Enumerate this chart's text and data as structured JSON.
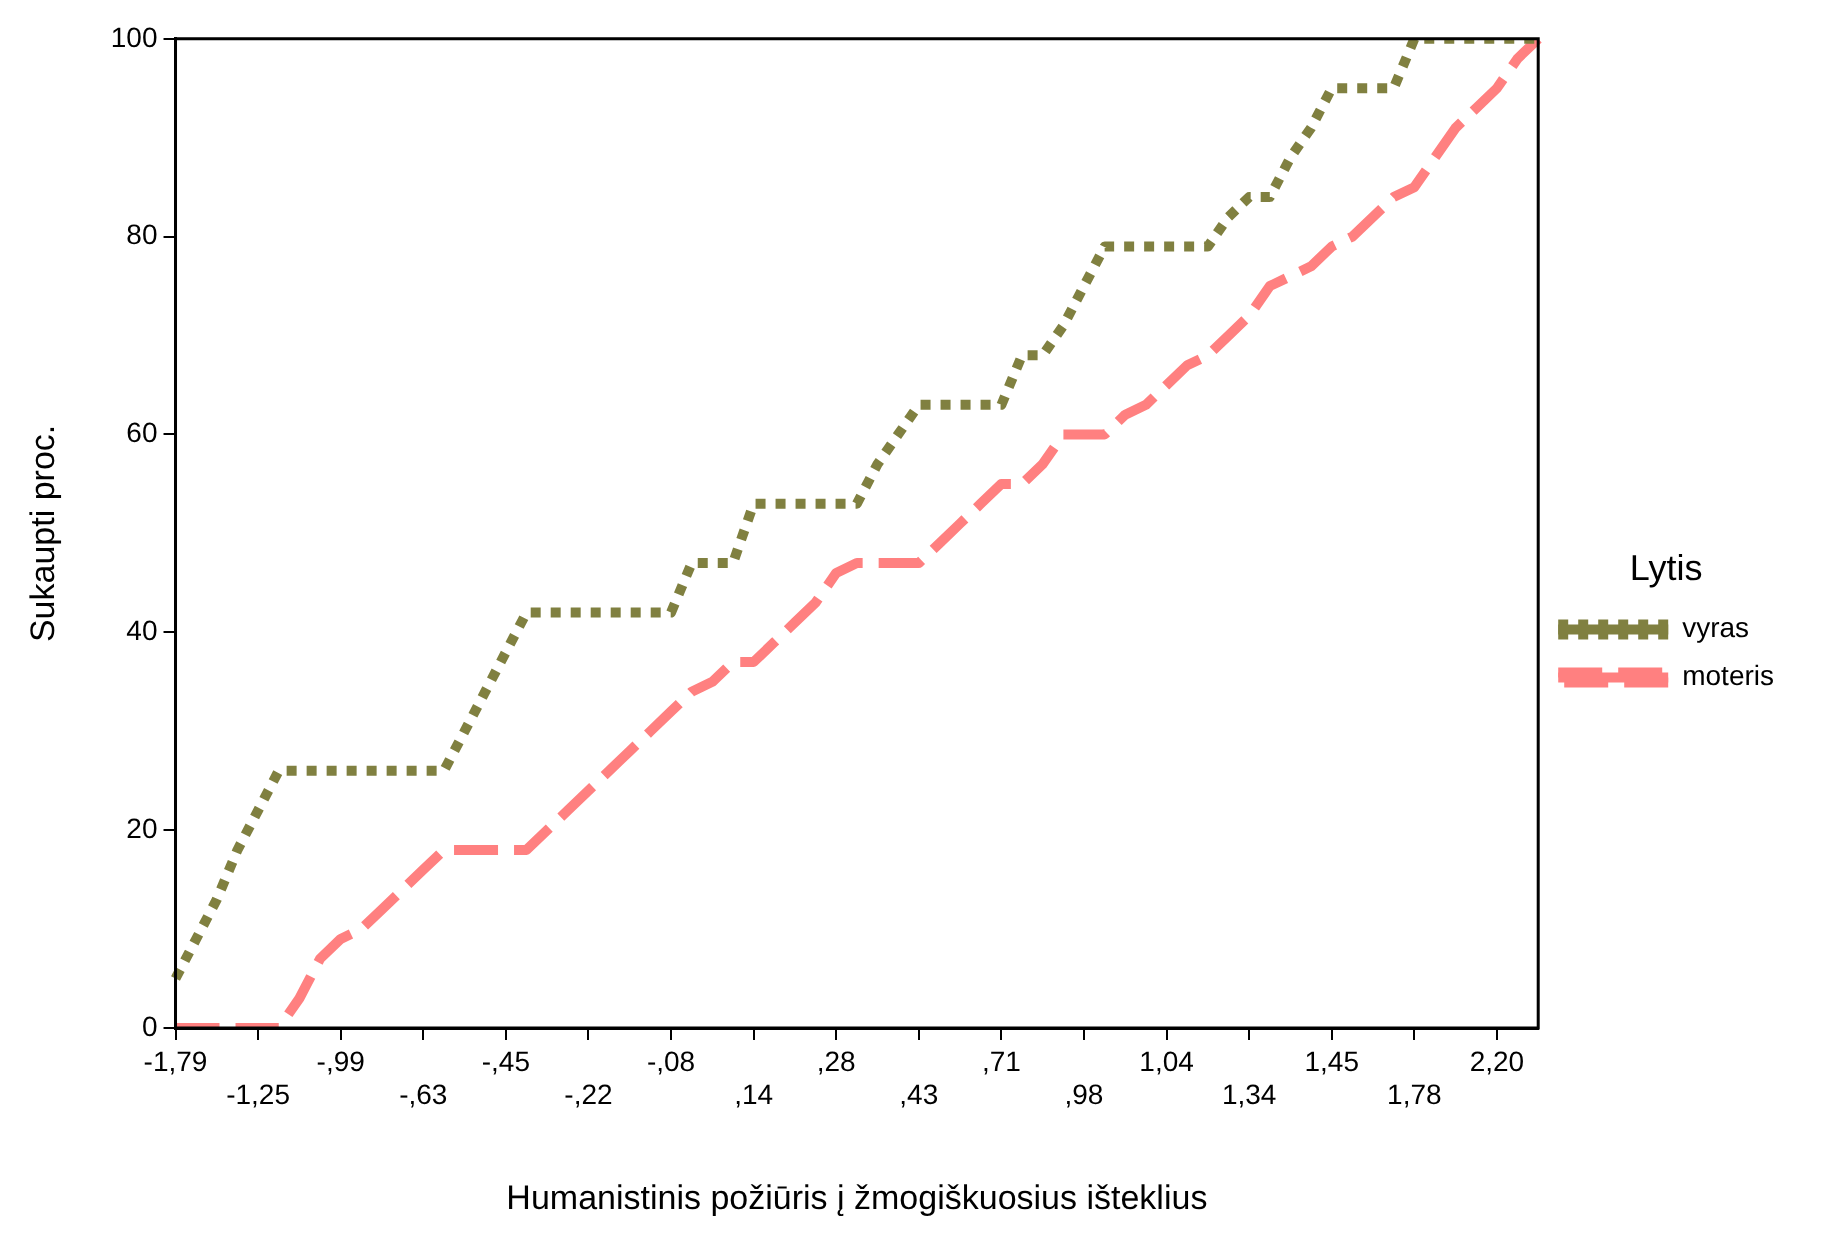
{
  "chart_data": {
    "type": "line",
    "xlabel": "Humanistinis požiūris į žmogiškuosius išteklius",
    "ylabel": "Sukaupti proc.",
    "legend_title": "Lytis",
    "legend": "right",
    "grid": false,
    "categories": [
      "-1,79",
      null,
      null,
      null,
      "-1,25",
      null,
      null,
      null,
      "-,99",
      null,
      null,
      null,
      "-,63",
      null,
      null,
      null,
      "-,45",
      null,
      null,
      null,
      "-,22",
      null,
      null,
      null,
      "-,08",
      null,
      null,
      null,
      ",14",
      null,
      null,
      null,
      ",28",
      null,
      null,
      null,
      ",43",
      null,
      null,
      null,
      ",71",
      null,
      null,
      null,
      ",98",
      null,
      null,
      null,
      "1,04",
      null,
      null,
      null,
      "1,34",
      null,
      null,
      null,
      "1,45",
      null,
      null,
      null,
      "1,78",
      null,
      null,
      null,
      "2,20",
      null,
      null
    ],
    "ylim": [
      0,
      100
    ],
    "yticks": [
      0,
      20,
      40,
      60,
      80,
      100
    ],
    "series": [
      {
        "name": "vyras",
        "color": "#808040",
        "line_style": "dotted",
        "values": [
          5,
          9,
          13,
          18,
          22,
          26,
          26,
          26,
          26,
          26,
          26,
          26,
          26,
          26,
          30,
          34,
          38,
          42,
          42,
          42,
          42,
          42,
          42,
          42,
          42,
          47,
          47,
          47,
          53,
          53,
          53,
          53,
          53,
          53,
          57,
          60,
          63,
          63,
          63,
          63,
          63,
          68,
          68,
          71,
          75,
          79,
          79,
          79,
          79,
          79,
          79,
          82,
          84,
          84,
          88,
          91,
          95,
          95,
          95,
          95,
          100,
          100,
          100,
          100,
          100,
          100,
          100
        ]
      },
      {
        "name": "moteris",
        "color": "#ff8080",
        "line_style": "dashed",
        "values": [
          0,
          0,
          0,
          0,
          0,
          0,
          3,
          7,
          9,
          10,
          12,
          14,
          16,
          18,
          18,
          18,
          18,
          18,
          20,
          22,
          24,
          26,
          28,
          30,
          32,
          34,
          35,
          37,
          37,
          39,
          41,
          43,
          46,
          47,
          47,
          47,
          47,
          49,
          51,
          53,
          55,
          55,
          57,
          60,
          60,
          60,
          62,
          63,
          65,
          67,
          68,
          70,
          72,
          75,
          76,
          77,
          79,
          80,
          82,
          84,
          85,
          88,
          91,
          93,
          95,
          98,
          100
        ]
      }
    ]
  }
}
